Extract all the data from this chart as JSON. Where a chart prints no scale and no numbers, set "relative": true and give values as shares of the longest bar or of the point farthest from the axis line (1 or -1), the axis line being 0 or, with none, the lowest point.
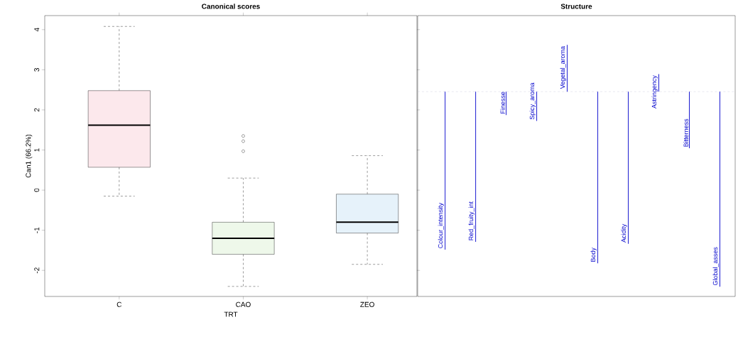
{
  "chart_data": [
    {
      "type": "box",
      "title": "Canonical scores",
      "xlabel": "TRT",
      "ylabel": "Can1 (66.2%)",
      "categories": [
        "C",
        "CAO",
        "ZEO"
      ],
      "boxes": [
        {
          "low": -0.15,
          "q1": 0.57,
          "median": 1.62,
          "q3": 2.48,
          "high": 4.08
        },
        {
          "low": -2.4,
          "q1": -1.6,
          "median": -1.2,
          "q3": -0.8,
          "high": 0.3,
          "outliers": [
            0.97,
            1.22,
            1.35
          ]
        },
        {
          "low": -1.85,
          "q1": -1.07,
          "median": -0.8,
          "q3": -0.1,
          "high": 0.86
        }
      ],
      "colors": [
        "#fce8ec",
        "#eef8ea",
        "#e6f2fa"
      ],
      "ylim": [
        -2.65,
        4.35
      ],
      "yticks": [
        -2,
        -1,
        0,
        1,
        2,
        3,
        4
      ]
    },
    {
      "type": "bar",
      "title": "Structure",
      "relative": true,
      "color": "#0000cc",
      "categories": [
        "Colour_intensity",
        "Red_fruity_int",
        "Finesse",
        "Spicy_aroma",
        "Vegetal_aroma",
        "Body",
        "Acidity",
        "Astringency",
        "Bitterness",
        "Global_asses"
      ],
      "values": [
        -0.81,
        -0.77,
        -0.12,
        -0.15,
        0.24,
        -0.88,
        -0.78,
        0.09,
        -0.29,
        -1
      ],
      "ref_lines": [
        {
          "axis": "y",
          "value": 0,
          "color": "#c8c8d8",
          "line_style": "dashed"
        }
      ]
    }
  ]
}
